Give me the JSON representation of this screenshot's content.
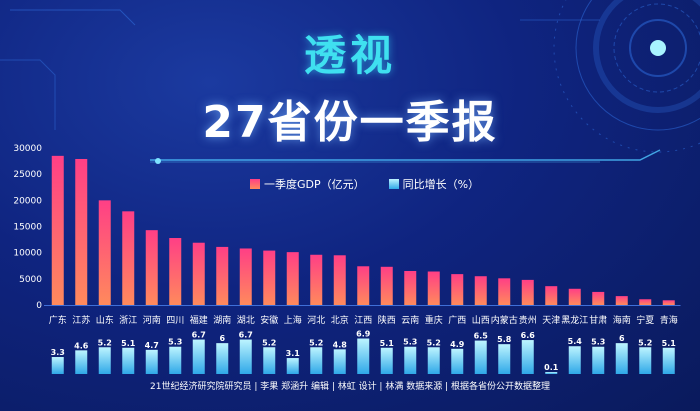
{
  "header": {
    "title_line1": "透视",
    "title_line2": "27省份一季报"
  },
  "legend": {
    "gdp_label": "一季度GDP（亿元）",
    "growth_label": "同比增长（%）"
  },
  "colors": {
    "gdp_top": "#ff3f86",
    "gdp_bottom": "#ff8a5c",
    "growth_top": "#bdf4ff",
    "growth_bottom": "#2fa8e8",
    "title_cyan": "#3fe0f0"
  },
  "footer": {
    "credits": "21世纪经济研究院研究员 | 李果 郑涵升  编辑 | 林虹  设计 | 林满  数据来源 | 根据各省份公开数据整理"
  },
  "chart_data": {
    "type": "bar",
    "categories": [
      "广东",
      "江苏",
      "山东",
      "浙江",
      "河南",
      "四川",
      "福建",
      "湖南",
      "湖北",
      "安徽",
      "上海",
      "河北",
      "北京",
      "江西",
      "陕西",
      "云南",
      "重庆",
      "广西",
      "山西",
      "内蒙古",
      "贵州",
      "天津",
      "黑龙江",
      "甘肃",
      "海南",
      "宁夏",
      "青海"
    ],
    "series": [
      {
        "name": "一季度GDP（亿元）",
        "values": [
          28500,
          27900,
          20000,
          17900,
          14300,
          12800,
          11900,
          11100,
          10800,
          10400,
          10100,
          9600,
          9500,
          7400,
          7300,
          6500,
          6400,
          5900,
          5500,
          5100,
          4800,
          3600,
          3100,
          2500,
          1700,
          1100,
          900
        ]
      },
      {
        "name": "同比增长（%）",
        "values": [
          3.3,
          4.6,
          5.2,
          5.1,
          4.7,
          5.3,
          6.7,
          6,
          6.7,
          5.2,
          3.1,
          5.2,
          4.8,
          6.9,
          5.1,
          5.3,
          5.2,
          4.9,
          6.5,
          5.8,
          6.6,
          0.1,
          5.4,
          5.3,
          6,
          5.2,
          5.1
        ]
      }
    ],
    "y_ticks": [
      0,
      5000,
      10000,
      15000,
      20000,
      25000,
      30000
    ],
    "ylim": [
      0,
      30000
    ],
    "growth_ylim": [
      0,
      7
    ]
  }
}
